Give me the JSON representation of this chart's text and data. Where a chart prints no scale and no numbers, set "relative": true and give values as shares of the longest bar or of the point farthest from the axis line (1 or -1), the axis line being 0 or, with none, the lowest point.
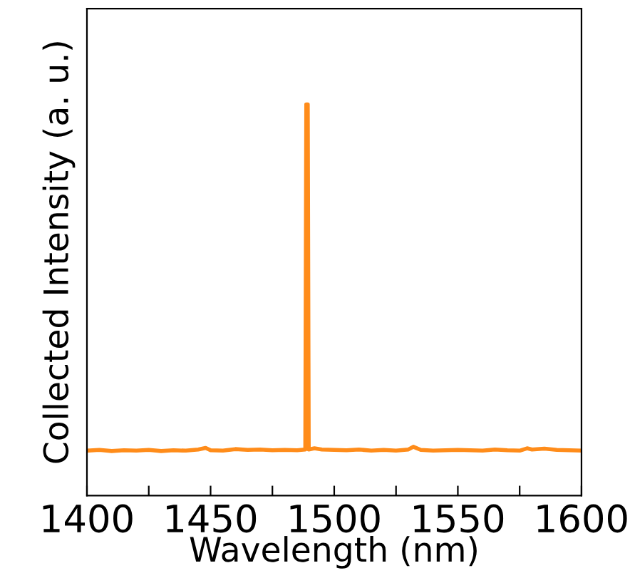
{
  "chart_data": {
    "type": "line",
    "xlabel": "Wavelength (nm)",
    "ylabel": "Collected Intensity (a. u.)",
    "relative": true,
    "xlim": [
      1400,
      1600
    ],
    "xticks": [
      1400,
      {
        "value": 1425,
        "label": null
      },
      1450,
      {
        "value": 1475,
        "label": null
      },
      1500,
      {
        "value": 1525,
        "label": null
      },
      1550,
      {
        "value": 1575,
        "label": null
      },
      1600
    ],
    "grid": false,
    "legend": false,
    "marker": "none",
    "line_style": "solid",
    "series": [
      {
        "color": "#ff8c1a",
        "x": [
          1400,
          1405,
          1410,
          1415,
          1420,
          1425,
          1430,
          1435,
          1440,
          1445,
          1448,
          1450,
          1455,
          1460,
          1465,
          1470,
          1475,
          1480,
          1485,
          1488.3,
          1488.7,
          1489.3,
          1489.7,
          1492,
          1495,
          1500,
          1505,
          1510,
          1515,
          1520,
          1525,
          1530,
          1532,
          1535,
          1540,
          1545,
          1550,
          1555,
          1560,
          1565,
          1570,
          1575,
          1578,
          1580,
          1585,
          1590,
          1595,
          1600
        ],
        "values": [
          0.115,
          0.117,
          0.114,
          0.116,
          0.115,
          0.117,
          0.114,
          0.116,
          0.115,
          0.118,
          0.122,
          0.116,
          0.115,
          0.119,
          0.117,
          0.118,
          0.116,
          0.117,
          0.116,
          0.118,
          1.0,
          1.0,
          0.118,
          0.121,
          0.118,
          0.117,
          0.116,
          0.118,
          0.115,
          0.117,
          0.115,
          0.118,
          0.125,
          0.117,
          0.115,
          0.116,
          0.117,
          0.116,
          0.115,
          0.118,
          0.116,
          0.115,
          0.121,
          0.118,
          0.12,
          0.117,
          0.116,
          0.115
        ]
      }
    ]
  }
}
